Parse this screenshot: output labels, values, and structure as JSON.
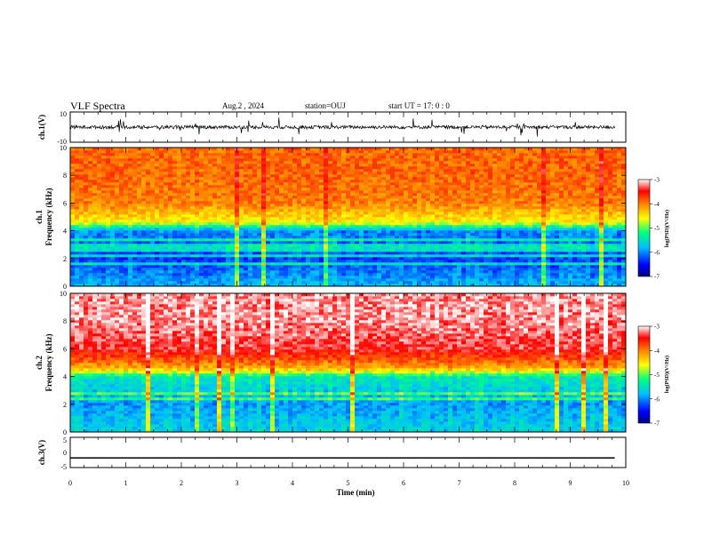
{
  "header": {
    "title": "VLF Spectra",
    "date": "Aug.2 , 2024",
    "station": "station=OUJ",
    "start": "start UT = 17: 0 : 0"
  },
  "chart_data": [
    {
      "type": "line",
      "panel": "ch1-waveform",
      "ylabel": "ch.1(V)",
      "ylim": [
        -10,
        10
      ],
      "yticks": [
        "10",
        "-10"
      ],
      "xlim": [
        0,
        10
      ],
      "description_of_trace": "noisy waveform around 0 V with sporadic spikes",
      "baseline": 0
    },
    {
      "type": "heatmap",
      "panel": "ch1-spectrogram",
      "ylabel": "ch.1\nFrequency (kHz)",
      "ylabel_line1": "ch.1",
      "ylabel_line2": "Frequency (kHz)",
      "ylim": [
        0,
        10
      ],
      "yticks": [
        "0",
        "2",
        "4",
        "6",
        "8",
        "10"
      ],
      "xlim": [
        0,
        10
      ],
      "colorbar": {
        "label": "log(PSD)(V²/Hz)",
        "range": [
          -7,
          -3
        ],
        "ticks": [
          "-3",
          "-4",
          "-5",
          "-6",
          "-7"
        ]
      },
      "colorscale": [
        "#00007f",
        "#0000ff",
        "#00bfff",
        "#00ff80",
        "#ffff00",
        "#ff8000",
        "#ff0000",
        "#ffffff"
      ],
      "profile_khz": [
        [
          0,
          -5.8
        ],
        [
          2,
          -6.3
        ],
        [
          4,
          -6.0
        ],
        [
          4.6,
          -4.6
        ],
        [
          6,
          -4.0
        ],
        [
          8,
          -3.9
        ],
        [
          10,
          -3.9
        ]
      ]
    },
    {
      "type": "heatmap",
      "panel": "ch2-spectrogram",
      "ylabel_line1": "ch.2",
      "ylabel_line2": "Frequency (kHz)",
      "ylim": [
        0,
        10
      ],
      "yticks": [
        "0",
        "2",
        "4",
        "6",
        "8",
        "10"
      ],
      "xlim": [
        0,
        10
      ],
      "colorbar": {
        "label": "log(PSD)(V²/Hz)",
        "range": [
          -7,
          -3
        ],
        "ticks": [
          "-3",
          "-4",
          "-5",
          "-6",
          "-7"
        ]
      },
      "profile_khz": [
        [
          0,
          -5.6
        ],
        [
          2,
          -5.9
        ],
        [
          4,
          -5.4
        ],
        [
          4.6,
          -4.2
        ],
        [
          6,
          -3.4
        ],
        [
          8,
          -3.2
        ],
        [
          10,
          -3.2
        ]
      ]
    },
    {
      "type": "line",
      "panel": "ch3-waveform",
      "ylabel": "ch.3(V)",
      "ylim": [
        -5,
        5
      ],
      "yticks": [
        "5",
        "0",
        "-5"
      ],
      "xlim": [
        0,
        10
      ],
      "x": [
        0,
        9.8
      ],
      "y": [
        -1.8,
        -1.8
      ]
    }
  ],
  "xaxis": {
    "label": "Time (min)",
    "ticks": [
      "0",
      "1",
      "2",
      "3",
      "4",
      "5",
      "6",
      "7",
      "8",
      "9",
      "10"
    ]
  }
}
